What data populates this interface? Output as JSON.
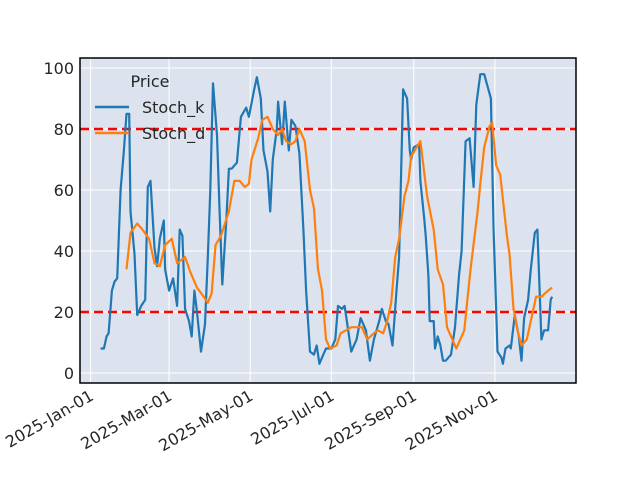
{
  "chart_data": {
    "type": "line",
    "title": "",
    "xlabel": "",
    "ylabel": "",
    "x_origin": "2025-01-01",
    "x_unit": "days since 2025-01-01",
    "xlim": [
      -8,
      365
    ],
    "ylim": [
      -3.3,
      103.3
    ],
    "grid": true,
    "xticks": [
      {
        "day": 0,
        "label": "2025-Jan-01"
      },
      {
        "day": 59,
        "label": "2025-Mar-01"
      },
      {
        "day": 120,
        "label": "2025-May-01"
      },
      {
        "day": 181,
        "label": "2025-Jul-01"
      },
      {
        "day": 243,
        "label": "2025-Sep-01"
      },
      {
        "day": 304,
        "label": "2025-Nov-01"
      }
    ],
    "yticks": [
      0,
      20,
      40,
      60,
      80,
      100
    ],
    "legend": {
      "title": "Price",
      "placement": "top-left"
    },
    "hlines": [
      {
        "y": 80,
        "color": "#ff0000",
        "style": "dashed"
      },
      {
        "y": 20,
        "color": "#ff0000",
        "style": "dashed"
      }
    ],
    "series": [
      {
        "name": "Stoch_k",
        "color": "#1f77b4",
        "x": [
          7.5,
          10,
          12,
          13.5,
          16,
          18,
          20,
          22.5,
          25,
          27,
          29,
          30,
          33,
          35,
          38,
          41,
          43,
          45,
          48,
          50,
          52,
          55,
          56,
          59,
          62,
          65,
          67,
          69,
          71,
          74,
          76,
          78,
          80,
          83,
          86,
          88,
          90,
          92,
          95,
          97,
          99,
          102,
          104,
          106,
          110,
          113,
          117,
          119,
          123,
          125,
          128,
          130,
          133,
          135,
          137,
          140,
          141,
          144,
          146,
          149,
          151,
          154,
          157,
          160,
          162,
          165,
          168,
          170,
          172,
          175,
          177,
          181,
          184,
          186,
          189,
          191,
          193,
          196,
          198,
          200,
          203,
          207,
          210,
          213,
          217,
          219,
          222,
          224,
          227,
          230,
          232,
          234,
          235,
          238,
          240,
          241,
          243,
          247,
          248,
          251,
          252,
          254,
          255,
          258,
          259,
          261,
          263,
          265,
          267,
          271,
          274,
          277,
          279,
          282,
          285,
          288,
          290,
          293,
          296,
          301,
          303,
          306,
          309,
          310,
          312,
          315,
          316,
          319,
          322,
          324,
          326,
          329,
          331,
          334,
          336,
          339,
          341,
          344,
          346,
          347
        ],
        "y": [
          8,
          8,
          12,
          13,
          27,
          30,
          31,
          60,
          73,
          85,
          85,
          53,
          39,
          19,
          22,
          24,
          61,
          63,
          41,
          35,
          44,
          50,
          34,
          27,
          31,
          22,
          47,
          45,
          21,
          17,
          12,
          27,
          20,
          7,
          16,
          37,
          60,
          95,
          78,
          53,
          29,
          50,
          67,
          67,
          69,
          84,
          87,
          84,
          93,
          97,
          90,
          73,
          66,
          53,
          70,
          80,
          89,
          75,
          89,
          73,
          83,
          81,
          72,
          47,
          27,
          7,
          6,
          9,
          3,
          6,
          8,
          8,
          11,
          22,
          21,
          22,
          16,
          7,
          9,
          11,
          18,
          14,
          4,
          11,
          17,
          21,
          17,
          16,
          9,
          27,
          38,
          75,
          93,
          90,
          73,
          70,
          74,
          75,
          63,
          50,
          45,
          32,
          17,
          17,
          8,
          12,
          9,
          4,
          4,
          6,
          15,
          32,
          40,
          76,
          77,
          61,
          88,
          98,
          98,
          90,
          47,
          7,
          5,
          3,
          8,
          9,
          8,
          19,
          12,
          4,
          18,
          24,
          34,
          46,
          47,
          11,
          14,
          14,
          24,
          25
        ]
      },
      {
        "name": "Stoch_d",
        "color": "#ff7f0e",
        "x": [
          27,
          30,
          35,
          39,
          44,
          48,
          52,
          56,
          61,
          65,
          71,
          75,
          80,
          85,
          88,
          91,
          94,
          98,
          104,
          108,
          112,
          116,
          119,
          121,
          126,
          129,
          133,
          137,
          141,
          144,
          147,
          151,
          154,
          157,
          161,
          165,
          168,
          171,
          174,
          177,
          180,
          185,
          188,
          192,
          196,
          204,
          208,
          213,
          216,
          220,
          223,
          226,
          229,
          232,
          236,
          239,
          241,
          248,
          253,
          258,
          261,
          265,
          268,
          275,
          281,
          284,
          286,
          291,
          293,
          296,
          300,
          302,
          305,
          308,
          313,
          315,
          318,
          321,
          324,
          328,
          331,
          335,
          339,
          344,
          347
        ],
        "y": [
          34,
          46,
          49,
          47,
          44,
          36,
          35,
          42,
          44,
          36,
          38,
          33,
          28,
          25,
          23,
          26,
          42,
          45,
          53,
          63,
          63,
          61,
          62,
          70,
          77,
          83,
          84,
          80,
          78,
          80,
          76,
          75,
          76,
          80,
          76,
          60,
          54,
          34,
          27,
          11,
          8,
          9,
          13,
          14,
          15,
          15,
          11,
          13,
          14,
          13,
          17,
          23,
          38,
          44,
          58,
          63,
          71,
          76,
          58,
          47,
          34,
          29,
          15,
          8,
          14,
          27,
          35,
          53,
          62,
          74,
          81,
          82,
          68,
          65,
          45,
          39,
          21,
          14,
          9,
          11,
          17,
          25,
          25,
          27,
          28
        ]
      }
    ]
  }
}
